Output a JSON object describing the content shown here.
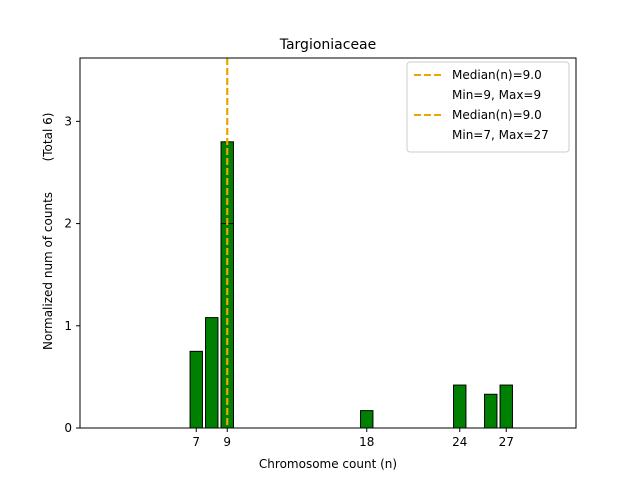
{
  "chart_data": {
    "type": "bar",
    "title": "Targioniaceae",
    "xlabel": "Chromosome count (n)",
    "ylabel": "Normalized num of counts",
    "ylabel_secondary": "(Total 6)",
    "xlim": [
      -0.5,
      31.5
    ],
    "ylim": [
      0,
      3.62
    ],
    "x_ticks": [
      7,
      9,
      18,
      24,
      27
    ],
    "y_ticks": [
      0,
      1,
      2,
      3
    ],
    "bar_color": "#008000",
    "bar_edge_color": "#000000",
    "median_color": "#e8a800",
    "series": [
      {
        "name": "back",
        "bar_width": 0.8,
        "bars": [
          {
            "x": 7,
            "value": 0.75
          },
          {
            "x": 8,
            "value": 1.08
          },
          {
            "x": 9,
            "value": 2.8
          },
          {
            "x": 18,
            "value": 0.17
          },
          {
            "x": 24,
            "value": 0.42
          },
          {
            "x": 26,
            "value": 0.33
          },
          {
            "x": 27,
            "value": 0.42
          }
        ]
      },
      {
        "name": "front",
        "bar_width": 0.8,
        "bars": [
          {
            "x": 0,
            "value": 0
          },
          {
            "x": 1,
            "value": 0
          },
          {
            "x": 2,
            "value": 0
          },
          {
            "x": 3,
            "value": 0
          },
          {
            "x": 4,
            "value": 0
          },
          {
            "x": 5,
            "value": 0
          },
          {
            "x": 6,
            "value": 0
          },
          {
            "x": 7,
            "value": 0
          },
          {
            "x": 8,
            "value": 0
          },
          {
            "x": 9,
            "value": 2.0
          },
          {
            "x": 10,
            "value": 0
          },
          {
            "x": 11,
            "value": 0
          },
          {
            "x": 12,
            "value": 0
          }
        ]
      }
    ],
    "medians": [
      {
        "x": 9.0
      },
      {
        "x": 9.0
      }
    ],
    "legend": {
      "position": "top-right",
      "entries": [
        {
          "label": "Median(n)=9.0",
          "marker": "dashed"
        },
        {
          "label": "Min=9, Max=9",
          "marker": "none"
        },
        {
          "label": "Median(n)=9.0",
          "marker": "dashed"
        },
        {
          "label": "Min=7, Max=27",
          "marker": "none"
        }
      ]
    }
  }
}
